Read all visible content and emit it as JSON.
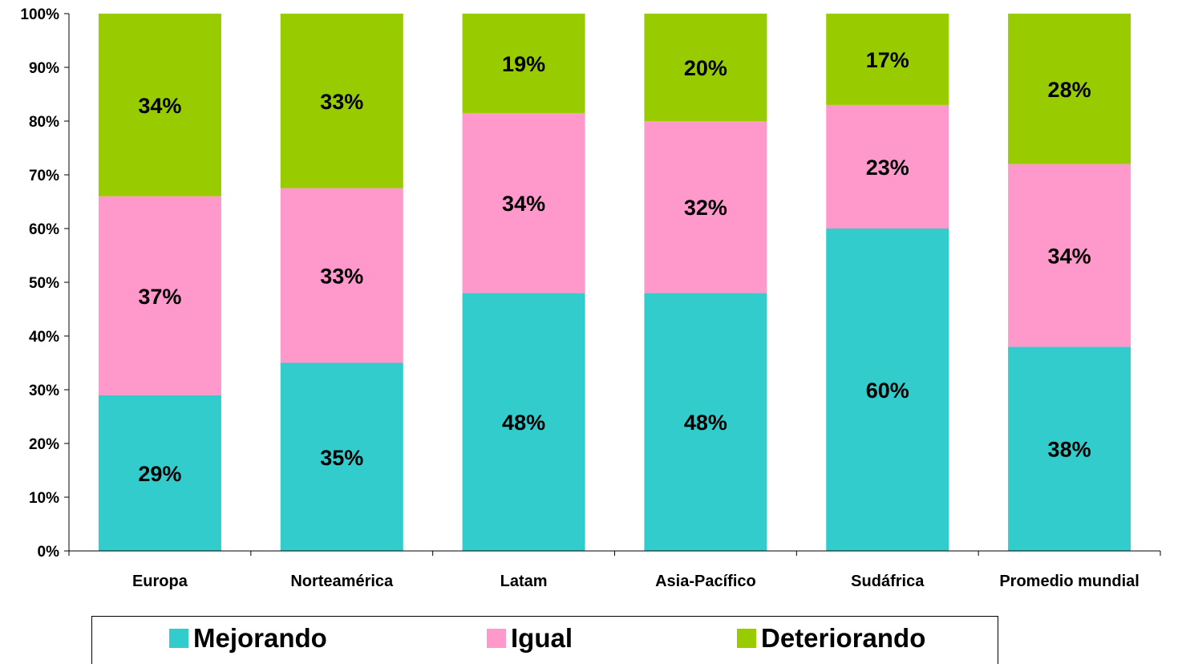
{
  "chart_data": {
    "type": "bar",
    "stacked": true,
    "categories": [
      "Europa",
      "Norteamérica",
      "Latam",
      "Asia-Pacífico",
      "Sudáfrica",
      "Promedio mundial"
    ],
    "series": [
      {
        "name": "Mejorando",
        "color": "#33CCCC",
        "values": [
          29,
          35,
          48,
          48,
          60,
          38
        ],
        "labels": [
          "29%",
          "35%",
          "48%",
          "48%",
          "60%",
          "38%"
        ]
      },
      {
        "name": "Igual",
        "color": "#FF99CC",
        "values": [
          37,
          32.5,
          33.5,
          32,
          23,
          34
        ],
        "labels": [
          "37%",
          "33%",
          "34%",
          "32%",
          "23%",
          "34%"
        ]
      },
      {
        "name": "Deteriorando",
        "color": "#99CC00",
        "values": [
          34,
          32.5,
          18.5,
          20,
          17,
          28
        ],
        "labels": [
          "34%",
          "33%",
          "19%",
          "20%",
          "17%",
          "28%"
        ]
      }
    ],
    "ylim": [
      0,
      100
    ],
    "yticks": [
      0,
      10,
      20,
      30,
      40,
      50,
      60,
      70,
      80,
      90,
      100
    ],
    "ytick_labels": [
      "0%",
      "10%",
      "20%",
      "30%",
      "40%",
      "50%",
      "60%",
      "70%",
      "80%",
      "90%",
      "100%"
    ],
    "legend_position": "bottom",
    "grid": false
  }
}
